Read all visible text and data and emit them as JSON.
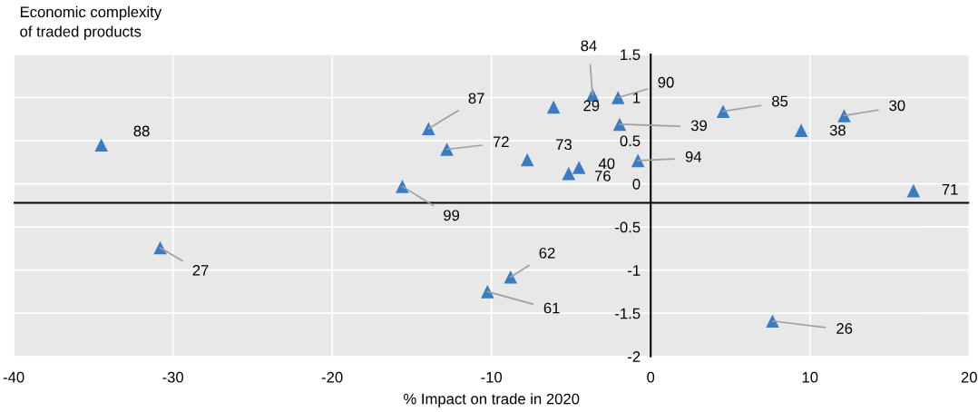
{
  "chart_data": {
    "type": "scatter",
    "xlabel": "% Impact on trade in 2020",
    "ylabel": "Economic complexity\nof traded products",
    "x": [
      -34.5,
      -13.95,
      -12.8,
      -15.6,
      -3.65,
      -6.1,
      -2.05,
      -1.95,
      4.55,
      9.45,
      12.15,
      -7.75,
      -5.15,
      -4.5,
      -0.8,
      16.5,
      -30.8,
      -8.8,
      -10.25,
      7.65
    ],
    "series": [
      {
        "color": "#3a7cc3",
        "values": [
          0.45,
          0.64,
          0.4,
          -0.03,
          1.03,
          0.89,
          1.0,
          0.69,
          0.84,
          0.62,
          0.79,
          0.28,
          0.12,
          0.19,
          0.27,
          -0.08,
          -0.74,
          -1.08,
          -1.25,
          -1.59
        ]
      }
    ],
    "marker": "triangle",
    "annotations": [
      {
        "text": "88",
        "x": -34.5,
        "y": 0.45
      },
      {
        "text": "87",
        "x": -13.95,
        "y": 0.64
      },
      {
        "text": "72",
        "x": -12.8,
        "y": 0.4
      },
      {
        "text": "99",
        "x": -15.6,
        "y": -0.03
      },
      {
        "text": "84",
        "x": -3.65,
        "y": 1.03
      },
      {
        "text": "29",
        "x": -6.1,
        "y": 0.89
      },
      {
        "text": "90",
        "x": -2.05,
        "y": 1.0
      },
      {
        "text": "39",
        "x": -1.95,
        "y": 0.69
      },
      {
        "text": "85",
        "x": 4.55,
        "y": 0.84
      },
      {
        "text": "38",
        "x": 9.45,
        "y": 0.62
      },
      {
        "text": "30",
        "x": 12.15,
        "y": 0.79
      },
      {
        "text": "73",
        "x": -7.75,
        "y": 0.28
      },
      {
        "text": "76",
        "x": -5.15,
        "y": 0.12
      },
      {
        "text": "40",
        "x": -4.5,
        "y": 0.19
      },
      {
        "text": "94",
        "x": -0.8,
        "y": 0.27
      },
      {
        "text": "71",
        "x": 16.5,
        "y": -0.08
      },
      {
        "text": "27",
        "x": -30.8,
        "y": -0.74
      },
      {
        "text": "62",
        "x": -8.8,
        "y": -1.08
      },
      {
        "text": "61",
        "x": -10.25,
        "y": -1.25
      },
      {
        "text": "26",
        "x": 7.65,
        "y": -1.59
      }
    ],
    "xlim": [
      -40,
      20
    ],
    "xticks": [
      -40,
      -30,
      -20,
      -10,
      0,
      10,
      20
    ],
    "ylim": [
      -2,
      1.5
    ],
    "yticks": [
      1.5,
      1,
      0.5,
      0,
      -0.5,
      -1,
      -1.5,
      -2
    ],
    "ref_lines": [
      {
        "axis": "y",
        "value": -0.22,
        "color": "#000000"
      }
    ],
    "grid": true
  }
}
